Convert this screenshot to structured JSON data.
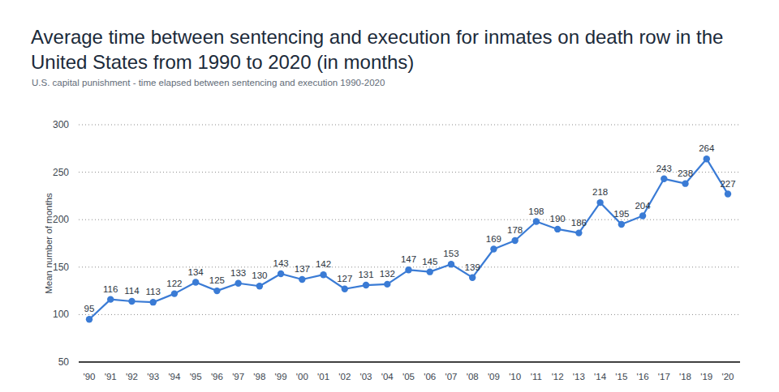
{
  "chart_data": {
    "type": "line",
    "title": "Average time between sentencing and execution for inmates on death row in the United States from 1990 to 2020 (in months)",
    "subtitle": "U.S. capital punishment - time elapsed between sentencing and execution 1990-2020",
    "y_label": "Mean number of months",
    "categories": [
      "'90",
      "'91",
      "'92",
      "'93",
      "'94",
      "'95",
      "'96",
      "'97",
      "'98",
      "'99",
      "'00",
      "'01",
      "'02",
      "'03",
      "'04",
      "'05",
      "'06",
      "'07",
      "'08",
      "'09",
      "'10",
      "'11",
      "'12",
      "'13",
      "'14",
      "'15",
      "'16",
      "'17",
      "'18",
      "'19",
      "'20"
    ],
    "values": [
      95,
      116,
      114,
      113,
      122,
      134,
      125,
      133,
      130,
      143,
      137,
      142,
      127,
      131,
      132,
      147,
      145,
      153,
      139,
      169,
      178,
      198,
      190,
      186,
      218,
      195,
      204,
      243,
      238,
      264,
      227
    ],
    "color": "#3a7bd5",
    "marker": "circle",
    "ylim": [
      50,
      300
    ],
    "yticks": [
      50,
      100,
      150,
      200,
      250,
      300
    ],
    "grid": true,
    "data_labels": true
  }
}
